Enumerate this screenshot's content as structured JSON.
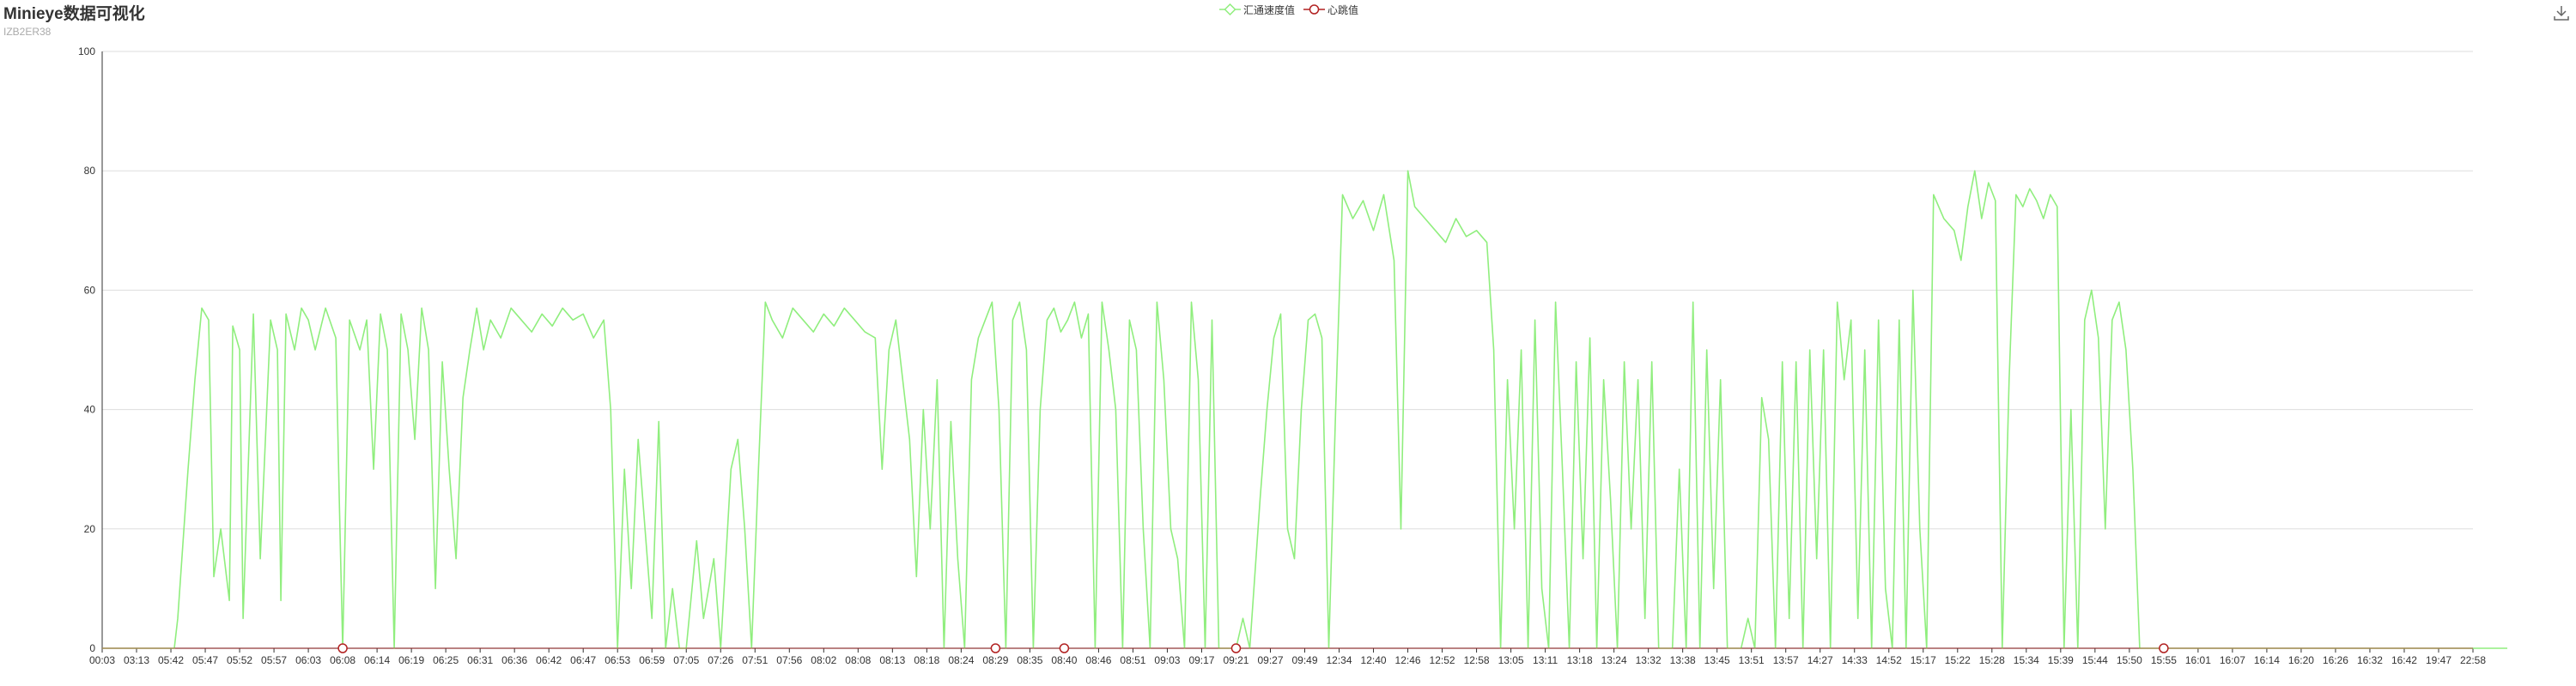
{
  "header": {
    "title": "Minieye数据可视化",
    "subtitle": "IZB2ER38"
  },
  "toolbar": {
    "save_icon": "download-icon"
  },
  "colors": {
    "speed": "#90ee7e",
    "heartbeat": "#b22222",
    "grid": "#dddddd",
    "axis": "#333333"
  },
  "chart_data": {
    "type": "line",
    "title": "Minieye数据可视化",
    "subtitle": "IZB2ER38",
    "legend": [
      "汇通速度值",
      "心跳值"
    ],
    "legend_position": "top-center",
    "grid": true,
    "ylim": [
      0,
      100
    ],
    "yticks": [
      0,
      20,
      40,
      60,
      80,
      100
    ],
    "x_labels": [
      "00:03",
      "03:13",
      "05:42",
      "05:47",
      "05:52",
      "05:57",
      "06:03",
      "06:08",
      "06:14",
      "06:19",
      "06:25",
      "06:31",
      "06:36",
      "06:42",
      "06:47",
      "06:53",
      "06:59",
      "07:05",
      "07:26",
      "07:51",
      "07:56",
      "08:02",
      "08:08",
      "08:13",
      "08:18",
      "08:24",
      "08:29",
      "08:35",
      "08:40",
      "08:46",
      "08:51",
      "09:03",
      "09:17",
      "09:21",
      "09:27",
      "09:49",
      "12:34",
      "12:40",
      "12:46",
      "12:52",
      "12:58",
      "13:05",
      "13:11",
      "13:18",
      "13:24",
      "13:32",
      "13:38",
      "13:45",
      "13:51",
      "13:57",
      "14:27",
      "14:33",
      "14:52",
      "15:17",
      "15:22",
      "15:28",
      "15:34",
      "15:39",
      "15:44",
      "15:50",
      "15:55",
      "16:01",
      "16:07",
      "16:14",
      "16:20",
      "16:26",
      "16:32",
      "16:42",
      "19:47",
      "22:58"
    ],
    "series": [
      {
        "name": "汇通速度值",
        "segments": [
          [
            0,
            0
          ],
          [
            2.1,
            0
          ],
          [
            2.2,
            5
          ],
          [
            2.5,
            30
          ],
          [
            2.7,
            45
          ],
          [
            2.9,
            57
          ],
          [
            3.1,
            55
          ],
          [
            3.25,
            12
          ],
          [
            3.45,
            20
          ],
          [
            3.7,
            8
          ],
          [
            3.8,
            54
          ],
          [
            4.0,
            50
          ],
          [
            4.1,
            5
          ],
          [
            4.4,
            56
          ],
          [
            4.6,
            15
          ],
          [
            4.9,
            55
          ],
          [
            5.1,
            50
          ],
          [
            5.2,
            8
          ],
          [
            5.35,
            56
          ],
          [
            5.6,
            50
          ],
          [
            5.8,
            57
          ],
          [
            6.0,
            55
          ],
          [
            6.2,
            50
          ],
          [
            6.5,
            57
          ],
          [
            6.8,
            52
          ],
          [
            6.9,
            25
          ],
          [
            7.0,
            0
          ],
          [
            7.2,
            55
          ],
          [
            7.5,
            50
          ],
          [
            7.7,
            55
          ],
          [
            7.9,
            30
          ],
          [
            8.1,
            56
          ],
          [
            8.3,
            50
          ],
          [
            8.5,
            0
          ],
          [
            8.7,
            56
          ],
          [
            8.9,
            50
          ],
          [
            9.1,
            35
          ],
          [
            9.3,
            57
          ],
          [
            9.5,
            50
          ],
          [
            9.7,
            10
          ],
          [
            9.9,
            48
          ],
          [
            10.1,
            30
          ],
          [
            10.3,
            15
          ],
          [
            10.5,
            42
          ],
          [
            10.7,
            50
          ],
          [
            10.9,
            57
          ],
          [
            11.1,
            50
          ],
          [
            11.3,
            55
          ],
          [
            11.6,
            52
          ],
          [
            11.9,
            57
          ],
          [
            12.2,
            55
          ],
          [
            12.5,
            53
          ],
          [
            12.8,
            56
          ],
          [
            13.1,
            54
          ],
          [
            13.4,
            57
          ],
          [
            13.7,
            55
          ],
          [
            14.0,
            56
          ],
          [
            14.3,
            52
          ],
          [
            14.6,
            55
          ],
          [
            14.8,
            40
          ],
          [
            15.0,
            0
          ],
          [
            15.2,
            30
          ],
          [
            15.4,
            10
          ],
          [
            15.6,
            35
          ],
          [
            15.8,
            20
          ],
          [
            16.0,
            5
          ],
          [
            16.2,
            38
          ],
          [
            16.4,
            0
          ],
          [
            16.6,
            10
          ],
          [
            16.8,
            0
          ],
          [
            17.0,
            0
          ],
          [
            17.3,
            18
          ],
          [
            17.5,
            5
          ],
          [
            17.8,
            15
          ],
          [
            18.0,
            0
          ],
          [
            18.3,
            30
          ],
          [
            18.5,
            35
          ],
          [
            18.7,
            20
          ],
          [
            18.9,
            0
          ],
          [
            19.1,
            30
          ],
          [
            19.3,
            58
          ],
          [
            19.5,
            55
          ],
          [
            19.8,
            52
          ],
          [
            20.1,
            57
          ],
          [
            20.4,
            55
          ],
          [
            20.7,
            53
          ],
          [
            21.0,
            56
          ],
          [
            21.3,
            54
          ],
          [
            21.6,
            57
          ],
          [
            21.9,
            55
          ],
          [
            22.2,
            53
          ],
          [
            22.5,
            52
          ],
          [
            22.7,
            30
          ],
          [
            22.9,
            50
          ],
          [
            23.1,
            55
          ],
          [
            23.3,
            45
          ],
          [
            23.5,
            35
          ],
          [
            23.7,
            12
          ],
          [
            23.9,
            40
          ],
          [
            24.1,
            20
          ],
          [
            24.3,
            45
          ],
          [
            24.5,
            0
          ],
          [
            24.7,
            38
          ],
          [
            24.9,
            15
          ],
          [
            25.1,
            0
          ],
          [
            25.3,
            45
          ],
          [
            25.5,
            52
          ],
          [
            25.7,
            55
          ],
          [
            25.9,
            58
          ],
          [
            26.1,
            40
          ],
          [
            26.3,
            0
          ],
          [
            26.5,
            55
          ],
          [
            26.7,
            58
          ],
          [
            26.9,
            50
          ],
          [
            27.1,
            0
          ],
          [
            27.3,
            40
          ],
          [
            27.5,
            55
          ],
          [
            27.7,
            57
          ],
          [
            27.9,
            53
          ],
          [
            28.1,
            55
          ],
          [
            28.3,
            58
          ],
          [
            28.5,
            52
          ],
          [
            28.7,
            56
          ],
          [
            28.9,
            0
          ],
          [
            29.1,
            58
          ],
          [
            29.3,
            50
          ],
          [
            29.5,
            40
          ],
          [
            29.7,
            0
          ],
          [
            29.9,
            55
          ],
          [
            30.1,
            50
          ],
          [
            30.3,
            20
          ],
          [
            30.5,
            0
          ],
          [
            30.7,
            58
          ],
          [
            30.9,
            45
          ],
          [
            31.1,
            20
          ],
          [
            31.3,
            15
          ],
          [
            31.5,
            0
          ],
          [
            31.7,
            58
          ],
          [
            31.9,
            45
          ],
          [
            32.1,
            0
          ],
          [
            32.3,
            55
          ],
          [
            32.5,
            0
          ],
          [
            32.7,
            0
          ],
          [
            33.0,
            0
          ],
          [
            33.2,
            5
          ],
          [
            33.4,
            0
          ],
          [
            33.7,
            25
          ],
          [
            33.9,
            40
          ],
          [
            34.1,
            52
          ],
          [
            34.3,
            56
          ],
          [
            34.5,
            20
          ],
          [
            34.7,
            15
          ],
          [
            34.9,
            40
          ],
          [
            35.1,
            55
          ],
          [
            35.3,
            56
          ],
          [
            35.5,
            52
          ],
          [
            35.7,
            0
          ],
          [
            35.9,
            40
          ],
          [
            36.1,
            76
          ],
          [
            36.4,
            72
          ],
          [
            36.7,
            75
          ],
          [
            37.0,
            70
          ],
          [
            37.3,
            76
          ],
          [
            37.6,
            65
          ],
          [
            37.8,
            20
          ],
          [
            38.0,
            80
          ],
          [
            38.2,
            74
          ],
          [
            38.5,
            72
          ],
          [
            38.8,
            70
          ],
          [
            39.1,
            68
          ],
          [
            39.4,
            72
          ],
          [
            39.7,
            69
          ],
          [
            40.0,
            70
          ],
          [
            40.3,
            68
          ],
          [
            40.5,
            50
          ],
          [
            40.7,
            0
          ],
          [
            40.9,
            45
          ],
          [
            41.1,
            20
          ],
          [
            41.3,
            50
          ],
          [
            41.5,
            0
          ],
          [
            41.7,
            55
          ],
          [
            41.9,
            10
          ],
          [
            42.1,
            0
          ],
          [
            42.3,
            58
          ],
          [
            42.5,
            30
          ],
          [
            42.7,
            0
          ],
          [
            42.9,
            48
          ],
          [
            43.1,
            15
          ],
          [
            43.3,
            52
          ],
          [
            43.5,
            0
          ],
          [
            43.7,
            45
          ],
          [
            43.9,
            25
          ],
          [
            44.1,
            0
          ],
          [
            44.3,
            48
          ],
          [
            44.5,
            20
          ],
          [
            44.7,
            45
          ],
          [
            44.9,
            5
          ],
          [
            45.1,
            48
          ],
          [
            45.3,
            0
          ],
          [
            45.5,
            0
          ],
          [
            45.7,
            0
          ],
          [
            45.9,
            30
          ],
          [
            46.1,
            0
          ],
          [
            46.3,
            58
          ],
          [
            46.5,
            0
          ],
          [
            46.7,
            50
          ],
          [
            46.9,
            10
          ],
          [
            47.1,
            45
          ],
          [
            47.3,
            0
          ],
          [
            47.5,
            0
          ],
          [
            47.7,
            0
          ],
          [
            47.9,
            5
          ],
          [
            48.1,
            0
          ],
          [
            48.3,
            42
          ],
          [
            48.5,
            35
          ],
          [
            48.7,
            0
          ],
          [
            48.9,
            48
          ],
          [
            49.1,
            5
          ],
          [
            49.3,
            48
          ],
          [
            49.5,
            0
          ],
          [
            49.7,
            50
          ],
          [
            49.9,
            15
          ],
          [
            50.1,
            50
          ],
          [
            50.3,
            0
          ],
          [
            50.5,
            58
          ],
          [
            50.7,
            45
          ],
          [
            50.9,
            55
          ],
          [
            51.1,
            5
          ],
          [
            51.3,
            50
          ],
          [
            51.5,
            0
          ],
          [
            51.7,
            55
          ],
          [
            51.9,
            10
          ],
          [
            52.1,
            0
          ],
          [
            52.3,
            55
          ],
          [
            52.5,
            0
          ],
          [
            52.7,
            60
          ],
          [
            52.9,
            20
          ],
          [
            53.1,
            0
          ],
          [
            53.3,
            76
          ],
          [
            53.6,
            72
          ],
          [
            53.9,
            70
          ],
          [
            54.1,
            65
          ],
          [
            54.3,
            74
          ],
          [
            54.5,
            80
          ],
          [
            54.7,
            72
          ],
          [
            54.9,
            78
          ],
          [
            55.1,
            75
          ],
          [
            55.3,
            0
          ],
          [
            55.5,
            45
          ],
          [
            55.7,
            76
          ],
          [
            55.9,
            74
          ],
          [
            56.1,
            77
          ],
          [
            56.3,
            75
          ],
          [
            56.5,
            72
          ],
          [
            56.7,
            76
          ],
          [
            56.9,
            74
          ],
          [
            57.1,
            0
          ],
          [
            57.3,
            40
          ],
          [
            57.5,
            0
          ],
          [
            57.7,
            55
          ],
          [
            57.9,
            60
          ],
          [
            58.1,
            52
          ],
          [
            58.3,
            20
          ],
          [
            58.5,
            55
          ],
          [
            58.7,
            58
          ],
          [
            58.9,
            50
          ],
          [
            59.1,
            30
          ],
          [
            59.3,
            0
          ],
          [
            60.0,
            0
          ],
          [
            70.0,
            0
          ]
        ]
      },
      {
        "name": "心跳值",
        "markers": [
          7.0,
          26.0,
          28.0,
          33.0,
          60.0
        ]
      }
    ]
  }
}
